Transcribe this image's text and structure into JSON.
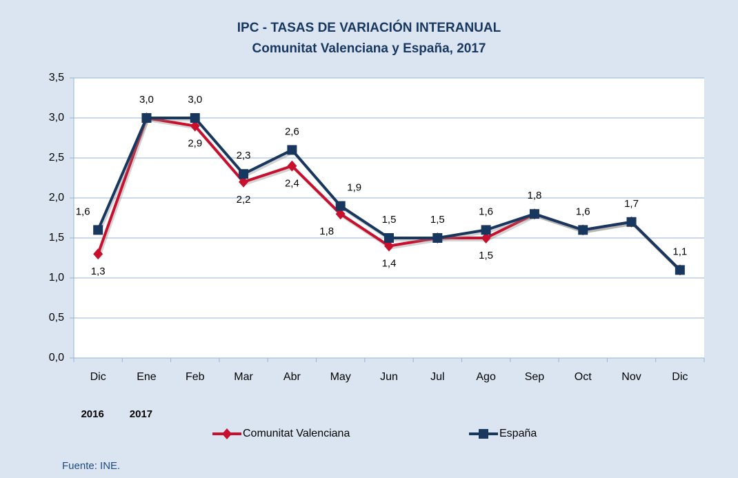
{
  "chart_data": {
    "type": "line",
    "title": "IPC - TASAS DE VARIACIÓN INTERANUAL",
    "subtitle": "Comunitat Valenciana y España, 2017",
    "categories": [
      "Dic",
      "Ene",
      "Feb",
      "Mar",
      "Abr",
      "May",
      "Jun",
      "Jul",
      "Ago",
      "Sep",
      "Oct",
      "Nov",
      "Dic"
    ],
    "year_labels": [
      "2016",
      "2017",
      null,
      null,
      null,
      null,
      null,
      null,
      null,
      null,
      null,
      null,
      null
    ],
    "series": [
      {
        "name": "Comunitat Valenciana",
        "color": "#c8102e",
        "marker": "diamond",
        "values": [
          1.3,
          3.0,
          2.9,
          2.2,
          2.4,
          1.8,
          1.4,
          1.5,
          1.5,
          1.8,
          1.6,
          1.7,
          1.1
        ],
        "value_labels": [
          "1,3",
          null,
          "2,9",
          "2,2",
          "2,4",
          "1,8",
          "1,4",
          null,
          "1,5",
          null,
          null,
          null,
          null
        ]
      },
      {
        "name": "España",
        "color": "#17375e",
        "marker": "square",
        "values": [
          1.6,
          3.0,
          3.0,
          2.3,
          2.6,
          1.9,
          1.5,
          1.5,
          1.6,
          1.8,
          1.6,
          1.7,
          1.1
        ],
        "value_labels": [
          "1,6",
          "3,0",
          "3,0",
          "2,3",
          "2,6",
          "1,9",
          "1,5",
          "1,5",
          "1,6",
          "1,8",
          "1,6",
          "1,7",
          "1,1"
        ]
      }
    ],
    "ylim": [
      0,
      3.5
    ],
    "yticks": [
      {
        "value": 0,
        "label": "0,0"
      },
      {
        "value": 0.5,
        "label": "0,5"
      },
      {
        "value": 1,
        "label": "1,0"
      },
      {
        "value": 1.5,
        "label": "1,5"
      },
      {
        "value": 2,
        "label": "2,0"
      },
      {
        "value": 2.5,
        "label": "2,5"
      },
      {
        "value": 3,
        "label": "3,0"
      },
      {
        "value": 3.5,
        "label": "3,5"
      }
    ],
    "grid": true,
    "legend": "bottom",
    "source": "Fuente: INE."
  }
}
